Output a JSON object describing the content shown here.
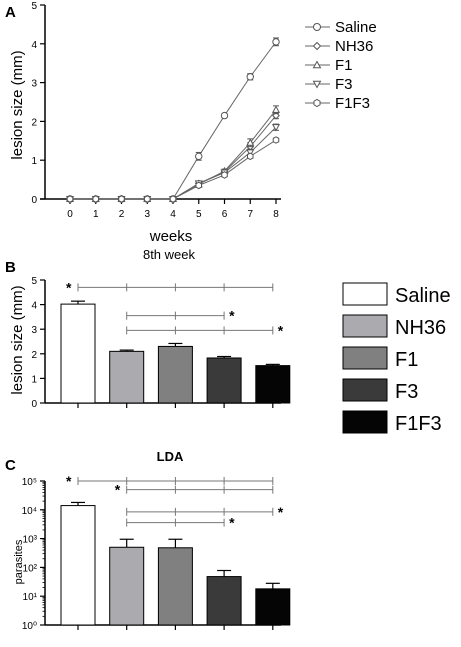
{
  "chart_data": [
    {
      "panel": "A",
      "type": "line",
      "xlabel": "weeks",
      "ylabel": "lesion size (mm)",
      "x": [
        0,
        1,
        2,
        3,
        4,
        5,
        6,
        7,
        8
      ],
      "xlim": [
        0,
        8
      ],
      "ylim": [
        0,
        5
      ],
      "yticks": [
        0,
        1,
        2,
        3,
        4,
        5
      ],
      "series": [
        {
          "name": "Saline",
          "marker": "circle",
          "values": [
            0,
            0,
            0,
            0,
            0,
            1.1,
            2.15,
            3.15,
            4.05
          ],
          "err": [
            0,
            0,
            0,
            0,
            0,
            0.1,
            0.05,
            0.08,
            0.1
          ]
        },
        {
          "name": "NH36",
          "marker": "diamond",
          "values": [
            0,
            0,
            0,
            0,
            0,
            0.4,
            0.7,
            1.35,
            2.15
          ],
          "err": [
            0,
            0,
            0,
            0,
            0,
            0.05,
            0.05,
            0.1,
            0.08
          ]
        },
        {
          "name": "F1",
          "marker": "triangle-up",
          "values": [
            0,
            0,
            0,
            0,
            0,
            0.38,
            0.72,
            1.45,
            2.3
          ],
          "err": [
            0,
            0,
            0,
            0,
            0,
            0.05,
            0.05,
            0.1,
            0.1
          ]
        },
        {
          "name": "F3",
          "marker": "triangle-down",
          "values": [
            0,
            0,
            0,
            0,
            0,
            0.4,
            0.68,
            1.2,
            1.85
          ],
          "err": [
            0,
            0,
            0,
            0,
            0,
            0.05,
            0.05,
            0.08,
            0.08
          ]
        },
        {
          "name": "F1F3",
          "marker": "hexagon",
          "values": [
            0,
            0,
            0,
            0,
            0,
            0.35,
            0.62,
            1.1,
            1.52
          ],
          "err": [
            0,
            0,
            0,
            0,
            0,
            0.05,
            0.05,
            0.05,
            0.05
          ]
        }
      ]
    },
    {
      "panel": "B",
      "type": "bar",
      "title": "8th week",
      "ylabel": "lesion size (mm)",
      "categories": [
        "Saline",
        "NH36",
        "F1",
        "F3",
        "F1F3"
      ],
      "values": [
        4.02,
        2.1,
        2.3,
        1.83,
        1.52
      ],
      "err": [
        0.12,
        0.05,
        0.12,
        0.06,
        0.05
      ],
      "colors": [
        "#ffffff",
        "#aaaaaf",
        "#808080",
        "#3a3a3a",
        "#050505"
      ],
      "ylim": [
        0,
        5
      ],
      "yticks": [
        0,
        1,
        2,
        3,
        4,
        5
      ],
      "significance": [
        {
          "label": "*",
          "from": "Saline",
          "to": "F1F3",
          "level": 4.7
        },
        {
          "label": "*",
          "from": "NH36",
          "to": "F3",
          "level": 3.55
        },
        {
          "label": "*",
          "from": "NH36",
          "to": "F1F3",
          "level": 2.95
        }
      ]
    },
    {
      "panel": "C",
      "type": "bar",
      "title": "LDA",
      "ylabel": "parasites",
      "yscale": "log",
      "categories": [
        "Saline",
        "NH36",
        "F1",
        "F3",
        "F1F3"
      ],
      "values": [
        14000,
        500,
        480,
        48,
        18
      ],
      "err_upper": [
        18000,
        950,
        950,
        78,
        28
      ],
      "colors": [
        "#ffffff",
        "#aaaaaf",
        "#808080",
        "#3a3a3a",
        "#050505"
      ],
      "ylim": [
        1,
        100000
      ],
      "yticks": [
        1,
        10,
        100,
        1000,
        10000,
        100000
      ],
      "ytick_labels": [
        "10⁰",
        "10¹",
        "10²",
        "10³",
        "10⁴",
        "10⁵"
      ],
      "significance": [
        {
          "label": "*",
          "from": "Saline",
          "to": "F1F3",
          "level": 100000
        },
        {
          "label": "*",
          "from": "NH36",
          "to": "F1F3",
          "level": 50000
        },
        {
          "label": "*",
          "from": "NH36",
          "to": "F1F3",
          "level": 8500
        },
        {
          "label": "*",
          "from": "NH36",
          "to": "F3",
          "level": 3600
        }
      ]
    }
  ],
  "panel_labels": {
    "a": "A",
    "b": "B",
    "c": "C"
  },
  "legend": {
    "items": [
      {
        "name": "Saline",
        "color": "#ffffff"
      },
      {
        "name": "NH36",
        "color": "#aaaaaf"
      },
      {
        "name": "F1",
        "color": "#808080"
      },
      {
        "name": "F3",
        "color": "#3a3a3a"
      },
      {
        "name": "F1F3",
        "color": "#050505"
      }
    ]
  }
}
